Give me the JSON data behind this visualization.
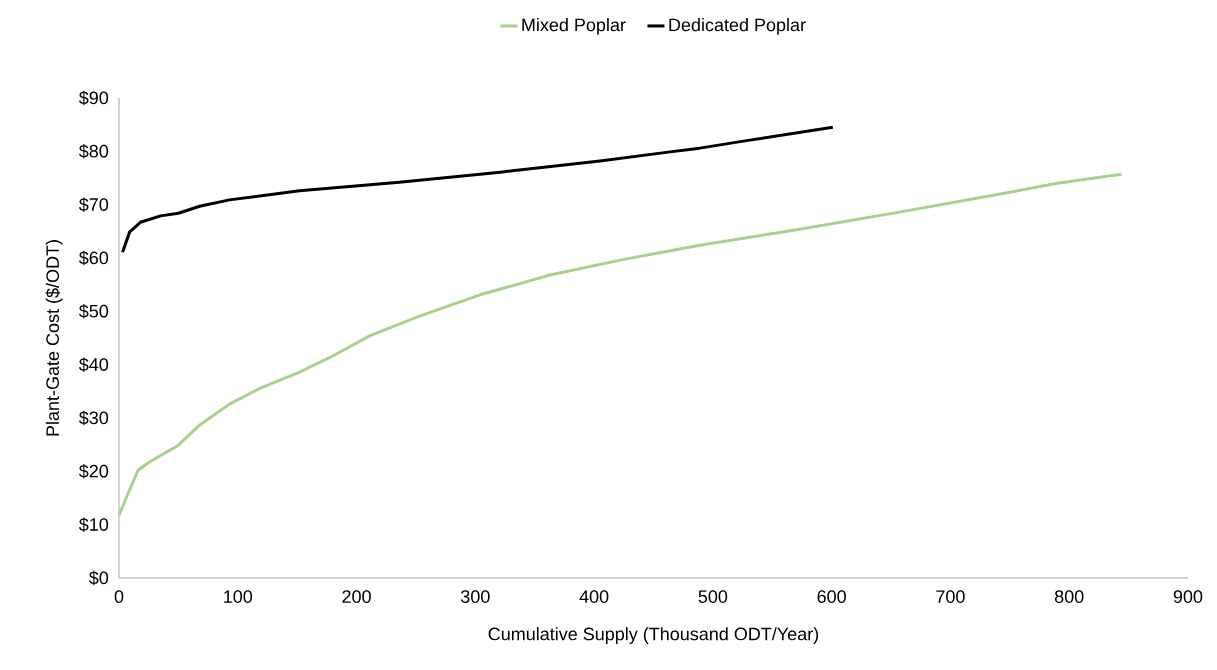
{
  "chart_data": {
    "type": "line",
    "xlabel": "Cumulative Supply (Thousand ODT/Year)",
    "ylabel": "Plant-Gate Cost ($/ODT)",
    "legend": "top",
    "grid": false,
    "marker": "none",
    "line_style": "solid",
    "xlim": [
      0,
      900
    ],
    "xticks": [
      0,
      100,
      200,
      300,
      400,
      500,
      600,
      700,
      800,
      900
    ],
    "ylim": [
      0,
      90
    ],
    "yticks": [
      {
        "value": 0,
        "label": "$0"
      },
      {
        "value": 10,
        "label": "$10"
      },
      {
        "value": 20,
        "label": "$20"
      },
      {
        "value": 30,
        "label": "$30"
      },
      {
        "value": 40,
        "label": "$40"
      },
      {
        "value": 50,
        "label": "$50"
      },
      {
        "value": 60,
        "label": "$60"
      },
      {
        "value": 70,
        "label": "$70"
      },
      {
        "value": 80,
        "label": "$80"
      },
      {
        "value": 90,
        "label": "$90"
      }
    ],
    "series": [
      {
        "name": "Mixed Poplar",
        "color": "#a9d18e",
        "x": [
          0,
          16,
          26,
          50,
          68,
          93,
          119,
          152,
          178,
          211,
          253,
          304,
          363,
          422,
          489,
          573,
          657,
          742,
          790,
          844
        ],
        "values": [
          11.8,
          20.2,
          21.8,
          24.9,
          28.7,
          32.6,
          35.6,
          38.6,
          41.4,
          45.4,
          49.1,
          53.1,
          56.8,
          59.6,
          62.4,
          65.4,
          68.6,
          72,
          74,
          75.7
        ]
      },
      {
        "name": "Dedicated Poplar",
        "color": "#000000",
        "x": [
          3,
          9,
          18,
          35,
          50,
          68,
          93,
          152,
          236,
          321,
          405,
          464,
          489,
          531,
          601
        ],
        "values": [
          61.1,
          64.9,
          66.7,
          67.9,
          68.4,
          69.7,
          70.9,
          72.6,
          74.2,
          76.1,
          78.2,
          79.9,
          80.6,
          82.1,
          84.5
        ]
      }
    ]
  }
}
